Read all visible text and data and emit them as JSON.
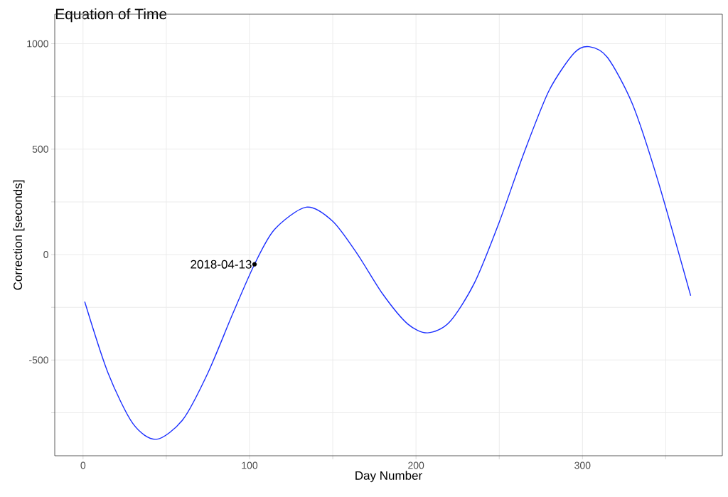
{
  "chart_data": {
    "type": "line",
    "title": "Equation of Time",
    "xlabel": "Day Number",
    "ylabel": "Correction [seconds]",
    "x": [
      1,
      15,
      30,
      44,
      60,
      75,
      90,
      103,
      115,
      134,
      150,
      165,
      180,
      195,
      207,
      220,
      235,
      250,
      265,
      280,
      295,
      304,
      315,
      330,
      345,
      365
    ],
    "series": [
      {
        "color": "#1a2eff",
        "values": [
          -223,
          -561,
          -802,
          -876,
          -782,
          -561,
          -279,
          -46,
          119,
          225,
          158,
          0,
          -187,
          -329,
          -371,
          -321,
          -136,
          154,
          485,
          779,
          956,
          986,
          935,
          714,
          359,
          -195
        ]
      }
    ],
    "xlim": [
      -17,
      384
    ],
    "ylim": [
      -954,
      1140
    ],
    "xticks": [
      0,
      {
        "value": 50,
        "label": null
      },
      100,
      {
        "value": 150,
        "label": null
      },
      200,
      {
        "value": 250,
        "label": null
      },
      300,
      {
        "value": 350,
        "label": null
      }
    ],
    "yticks": [
      {
        "value": -750,
        "label": null
      },
      -500,
      {
        "value": -250,
        "label": null
      },
      0,
      {
        "value": 250,
        "label": null
      },
      500,
      {
        "value": 750,
        "label": null
      },
      1000
    ],
    "grid": true,
    "marker": "none",
    "line_style": "solid",
    "annotations": [
      {
        "text": "2018-04-13",
        "x": 103,
        "y": -46
      }
    ]
  }
}
